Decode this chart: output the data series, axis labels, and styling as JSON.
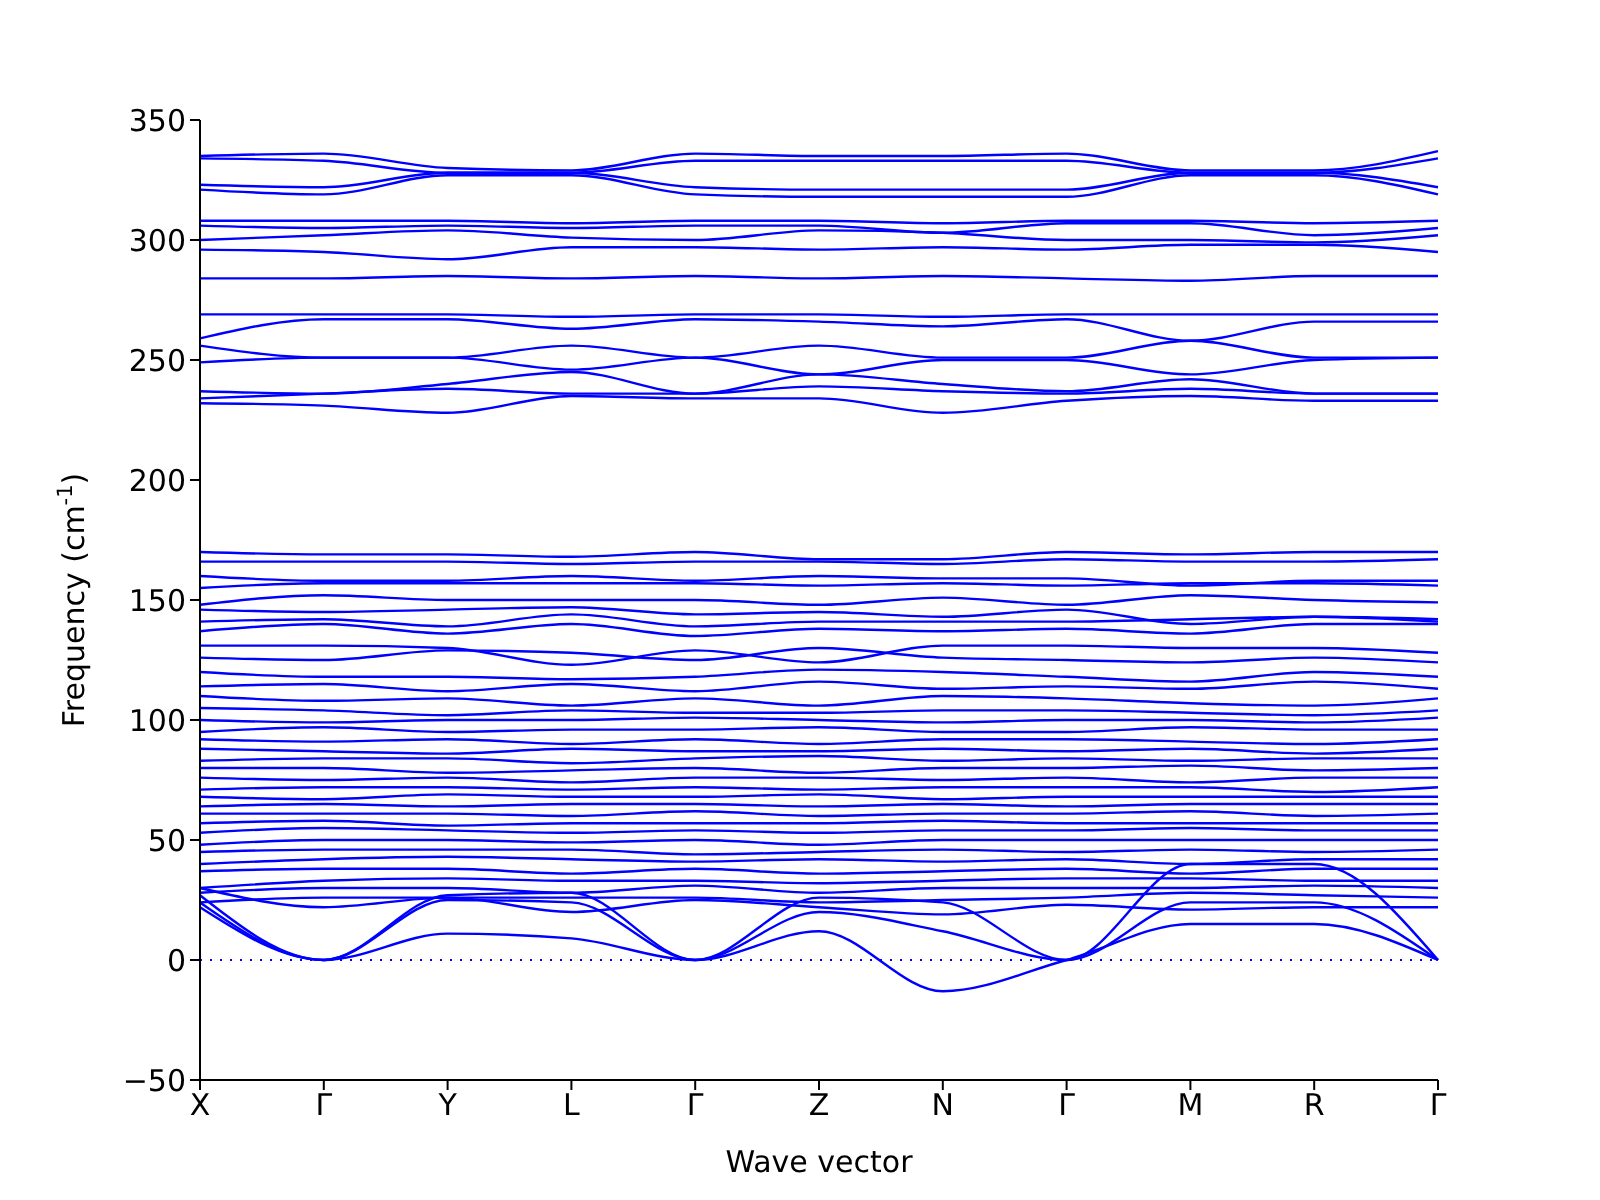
{
  "chart_data": {
    "type": "line",
    "xlabel": "Wave vector",
    "ylabel": "Frequency (cm$^{-1}$)",
    "categories": [
      "X",
      "Γ",
      "Y",
      "L",
      "Γ",
      "Z",
      "N",
      "Γ",
      "M",
      "R",
      "Γ"
    ],
    "ylim": [
      -50,
      350
    ],
    "yticks": [
      -50,
      0,
      50,
      100,
      150,
      200,
      250,
      300,
      350
    ],
    "grid": false,
    "legend": false,
    "marker": "none",
    "ref_lines": [
      {
        "axis": "y",
        "value": 0,
        "color": "#0000ff",
        "line_style": "dotted"
      }
    ],
    "series": [
      {
        "color": "#0000ff",
        "values": [
          335,
          336,
          330,
          329,
          336,
          335,
          335,
          336,
          329,
          329,
          337
        ]
      },
      {
        "color": "#0000ff",
        "values": [
          334,
          333,
          328,
          328,
          333,
          333,
          333,
          333,
          328,
          328,
          334
        ]
      },
      {
        "color": "#0000ff",
        "values": [
          323,
          322,
          328,
          328,
          322,
          321,
          321,
          321,
          328,
          328,
          322
        ]
      },
      {
        "color": "#0000ff",
        "values": [
          321,
          319,
          327,
          327,
          319,
          318,
          318,
          318,
          327,
          327,
          319
        ]
      },
      {
        "color": "#0000ff",
        "values": [
          308,
          308,
          308,
          307,
          308,
          308,
          307,
          308,
          308,
          307,
          308
        ]
      },
      {
        "color": "#0000ff",
        "values": [
          306,
          305,
          306,
          305,
          306,
          306,
          303,
          307,
          307,
          302,
          305
        ]
      },
      {
        "color": "#0000ff",
        "values": [
          300,
          302,
          304,
          301,
          300,
          304,
          303,
          300,
          300,
          299,
          302
        ]
      },
      {
        "color": "#0000ff",
        "values": [
          296,
          295,
          292,
          297,
          297,
          296,
          297,
          296,
          298,
          298,
          295
        ]
      },
      {
        "color": "#0000ff",
        "values": [
          284,
          284,
          285,
          284,
          285,
          284,
          285,
          284,
          283,
          285,
          285
        ]
      },
      {
        "color": "#0000ff",
        "values": [
          269,
          269,
          269,
          268,
          269,
          269,
          268,
          269,
          269,
          269,
          269
        ]
      },
      {
        "color": "#0000ff",
        "values": [
          259,
          267,
          267,
          263,
          267,
          266,
          264,
          267,
          258,
          266,
          266
        ]
      },
      {
        "color": "#0000ff",
        "values": [
          256,
          251,
          251,
          256,
          251,
          256,
          251,
          251,
          258,
          251,
          251
        ]
      },
      {
        "color": "#0000ff",
        "values": [
          249,
          251,
          251,
          246,
          251,
          244,
          250,
          250,
          244,
          250,
          251
        ]
      },
      {
        "color": "#0000ff",
        "values": [
          237,
          236,
          240,
          245,
          236,
          244,
          240,
          237,
          242,
          236,
          236
        ]
      },
      {
        "color": "#0000ff",
        "values": [
          234,
          236,
          238,
          236,
          236,
          239,
          237,
          236,
          238,
          236,
          236
        ]
      },
      {
        "color": "#0000ff",
        "values": [
          232,
          231,
          228,
          235,
          234,
          234,
          228,
          233,
          235,
          233,
          233
        ]
      },
      {
        "color": "#0000ff",
        "values": [
          170,
          169,
          169,
          168,
          170,
          167,
          167,
          170,
          169,
          170,
          170
        ]
      },
      {
        "color": "#0000ff",
        "values": [
          166,
          166,
          166,
          165,
          166,
          166,
          165,
          167,
          166,
          166,
          167
        ]
      },
      {
        "color": "#0000ff",
        "values": [
          160,
          158,
          158,
          160,
          158,
          160,
          159,
          159,
          156,
          158,
          158
        ]
      },
      {
        "color": "#0000ff",
        "values": [
          155,
          157,
          157,
          157,
          157,
          156,
          157,
          156,
          157,
          157,
          156
        ]
      },
      {
        "color": "#0000ff",
        "values": [
          148,
          152,
          150,
          150,
          150,
          148,
          151,
          148,
          152,
          150,
          149
        ]
      },
      {
        "color": "#0000ff",
        "values": [
          146,
          145,
          146,
          147,
          144,
          145,
          143,
          146,
          140,
          143,
          142
        ]
      },
      {
        "color": "#0000ff",
        "values": [
          141,
          142,
          139,
          144,
          139,
          141,
          141,
          141,
          142,
          143,
          141
        ]
      },
      {
        "color": "#0000ff",
        "values": [
          137,
          140,
          136,
          140,
          135,
          138,
          137,
          138,
          136,
          140,
          140
        ]
      },
      {
        "color": "#0000ff",
        "values": [
          131,
          131,
          130,
          123,
          129,
          124,
          131,
          131,
          130,
          130,
          128
        ]
      },
      {
        "color": "#0000ff",
        "values": [
          126,
          125,
          129,
          128,
          125,
          130,
          126,
          125,
          124,
          126,
          124
        ]
      },
      {
        "color": "#0000ff",
        "values": [
          120,
          118,
          118,
          117,
          118,
          121,
          120,
          118,
          116,
          120,
          118
        ]
      },
      {
        "color": "#0000ff",
        "values": [
          114,
          115,
          112,
          115,
          112,
          116,
          113,
          114,
          113,
          116,
          113
        ]
      },
      {
        "color": "#0000ff",
        "values": [
          110,
          108,
          109,
          106,
          109,
          106,
          110,
          109,
          107,
          106,
          109
        ]
      },
      {
        "color": "#0000ff",
        "values": [
          105,
          104,
          102,
          104,
          103,
          103,
          104,
          104,
          103,
          102,
          104
        ]
      },
      {
        "color": "#0000ff",
        "values": [
          100,
          99,
          100,
          100,
          101,
          100,
          99,
          100,
          100,
          99,
          101
        ]
      },
      {
        "color": "#0000ff",
        "values": [
          95,
          97,
          95,
          96,
          96,
          97,
          95,
          95,
          97,
          96,
          96
        ]
      },
      {
        "color": "#0000ff",
        "values": [
          92,
          91,
          92,
          90,
          92,
          90,
          92,
          92,
          91,
          90,
          92
        ]
      },
      {
        "color": "#0000ff",
        "values": [
          88,
          87,
          86,
          88,
          87,
          87,
          88,
          87,
          88,
          86,
          88
        ]
      },
      {
        "color": "#0000ff",
        "values": [
          83,
          84,
          84,
          82,
          84,
          85,
          83,
          84,
          83,
          84,
          84
        ]
      },
      {
        "color": "#0000ff",
        "values": [
          80,
          80,
          78,
          79,
          80,
          78,
          80,
          80,
          81,
          79,
          80
        ]
      },
      {
        "color": "#0000ff",
        "values": [
          76,
          75,
          76,
          74,
          76,
          76,
          75,
          76,
          74,
          76,
          76
        ]
      },
      {
        "color": "#0000ff",
        "values": [
          71,
          72,
          72,
          71,
          72,
          71,
          72,
          72,
          72,
          70,
          72
        ]
      },
      {
        "color": "#0000ff",
        "values": [
          68,
          67,
          69,
          68,
          68,
          69,
          67,
          68,
          68,
          68,
          68
        ]
      },
      {
        "color": "#0000ff",
        "values": [
          64,
          65,
          64,
          65,
          65,
          64,
          65,
          64,
          65,
          65,
          65
        ]
      },
      {
        "color": "#0000ff",
        "values": [
          61,
          61,
          61,
          60,
          62,
          60,
          61,
          61,
          62,
          60,
          61
        ]
      },
      {
        "color": "#0000ff",
        "values": [
          57,
          58,
          56,
          57,
          57,
          57,
          58,
          57,
          57,
          57,
          57
        ]
      },
      {
        "color": "#0000ff",
        "values": [
          53,
          55,
          54,
          53,
          54,
          53,
          54,
          54,
          55,
          54,
          54
        ]
      },
      {
        "color": "#0000ff",
        "values": [
          48,
          50,
          50,
          49,
          50,
          48,
          50,
          50,
          50,
          50,
          50
        ]
      },
      {
        "color": "#0000ff",
        "values": [
          45,
          46,
          46,
          46,
          44,
          45,
          46,
          45,
          46,
          45,
          46
        ]
      },
      {
        "color": "#0000ff",
        "values": [
          40,
          42,
          43,
          42,
          41,
          42,
          41,
          42,
          40,
          42,
          42
        ]
      },
      {
        "color": "#0000ff",
        "values": [
          37,
          38,
          38,
          36,
          38,
          36,
          37,
          38,
          36,
          38,
          38
        ]
      },
      {
        "color": "#0000ff",
        "values": [
          30,
          33,
          34,
          33,
          33,
          32,
          33,
          34,
          34,
          33,
          33
        ]
      },
      {
        "color": "#0000ff",
        "values": [
          28,
          30,
          30,
          28,
          31,
          28,
          30,
          30,
          30,
          31,
          30
        ]
      },
      {
        "color": "#0000ff",
        "values": [
          24,
          26,
          26,
          26,
          26,
          24,
          25,
          26,
          28,
          27,
          26
        ]
      },
      {
        "color": "#0000ff",
        "values": [
          22,
          0,
          11,
          9,
          0,
          12,
          -13,
          0,
          15,
          15,
          0
        ]
      },
      {
        "color": "#0000ff",
        "values": [
          24,
          0,
          25,
          24,
          0,
          20,
          12,
          0,
          24,
          24,
          0
        ]
      },
      {
        "color": "#0000ff",
        "values": [
          27,
          0,
          27,
          28,
          0,
          26,
          24,
          0,
          40,
          40,
          0
        ]
      },
      {
        "color": "#0000ff",
        "values": [
          30,
          22,
          26,
          20,
          25,
          22,
          19,
          23,
          21,
          22,
          22
        ]
      }
    ]
  }
}
